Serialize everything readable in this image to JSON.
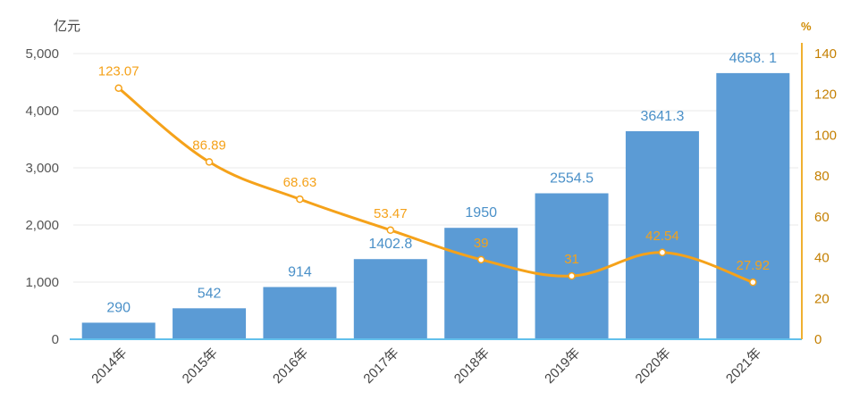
{
  "chart_data": {
    "type": "bar",
    "categories": [
      "2014年",
      "2015年",
      "2016年",
      "2017年",
      "2018年",
      "2019年",
      "2020年",
      "2021年"
    ],
    "series": [
      {
        "type": "bar",
        "axis": "left",
        "color": "#5b9bd5",
        "values": [
          290,
          542,
          914,
          1402.8,
          1950,
          2554.5,
          3641.3,
          4658.1
        ],
        "labels": [
          "290",
          "542",
          "914",
          "1402.8",
          "1950",
          "2554.5",
          "3641.3",
          "4658. 1"
        ]
      },
      {
        "type": "line",
        "axis": "right",
        "color": "#f5a21a",
        "values": [
          123.07,
          86.89,
          68.63,
          53.47,
          39,
          31,
          42.54,
          27.92
        ],
        "labels": [
          "123.07",
          "86.89",
          "68.63",
          "53.47",
          "39",
          "31",
          "42.54",
          "27.92"
        ]
      }
    ],
    "y_left": {
      "unit": "亿元",
      "ylim": [
        0,
        5000
      ],
      "ticks": [
        "0",
        "1,000",
        "2,000",
        "3,000",
        "4,000",
        "5,000"
      ]
    },
    "y_right": {
      "unit": "%",
      "ylim": [
        0,
        140
      ],
      "ticks": [
        "0",
        "20",
        "40",
        "60",
        "80",
        "100",
        "120",
        "140"
      ]
    },
    "grid": true,
    "legend": "none"
  }
}
